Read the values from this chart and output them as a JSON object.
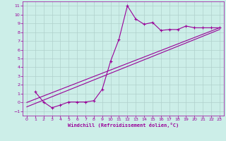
{
  "title": "",
  "xlabel": "Windchill (Refroidissement éolien,°C)",
  "bg_color": "#cceee8",
  "grid_color": "#b0d0cc",
  "line_color": "#990099",
  "xlim": [
    -0.5,
    23.5
  ],
  "ylim": [
    -1.5,
    11.5
  ],
  "xticks": [
    0,
    1,
    2,
    3,
    4,
    5,
    6,
    7,
    8,
    9,
    10,
    11,
    12,
    13,
    14,
    15,
    16,
    17,
    18,
    19,
    20,
    21,
    22,
    23
  ],
  "yticks": [
    -1,
    0,
    1,
    2,
    3,
    4,
    5,
    6,
    7,
    8,
    9,
    10,
    11
  ],
  "scatter_x": [
    1,
    2,
    3,
    4,
    5,
    6,
    7,
    8,
    9,
    10,
    11,
    12,
    13,
    14,
    15,
    16,
    17,
    18,
    19,
    20,
    21,
    22,
    23
  ],
  "scatter_y": [
    1.2,
    0.05,
    -0.6,
    -0.3,
    0.05,
    0.05,
    0.05,
    0.2,
    1.5,
    4.7,
    7.2,
    11.0,
    9.5,
    8.9,
    9.1,
    8.2,
    8.3,
    8.3,
    8.7,
    8.5,
    8.5,
    8.5,
    8.5
  ],
  "line1_x": [
    0,
    23
  ],
  "line1_y": [
    0.0,
    8.5
  ],
  "line2_x": [
    0,
    23
  ],
  "line2_y": [
    -0.5,
    8.3
  ]
}
